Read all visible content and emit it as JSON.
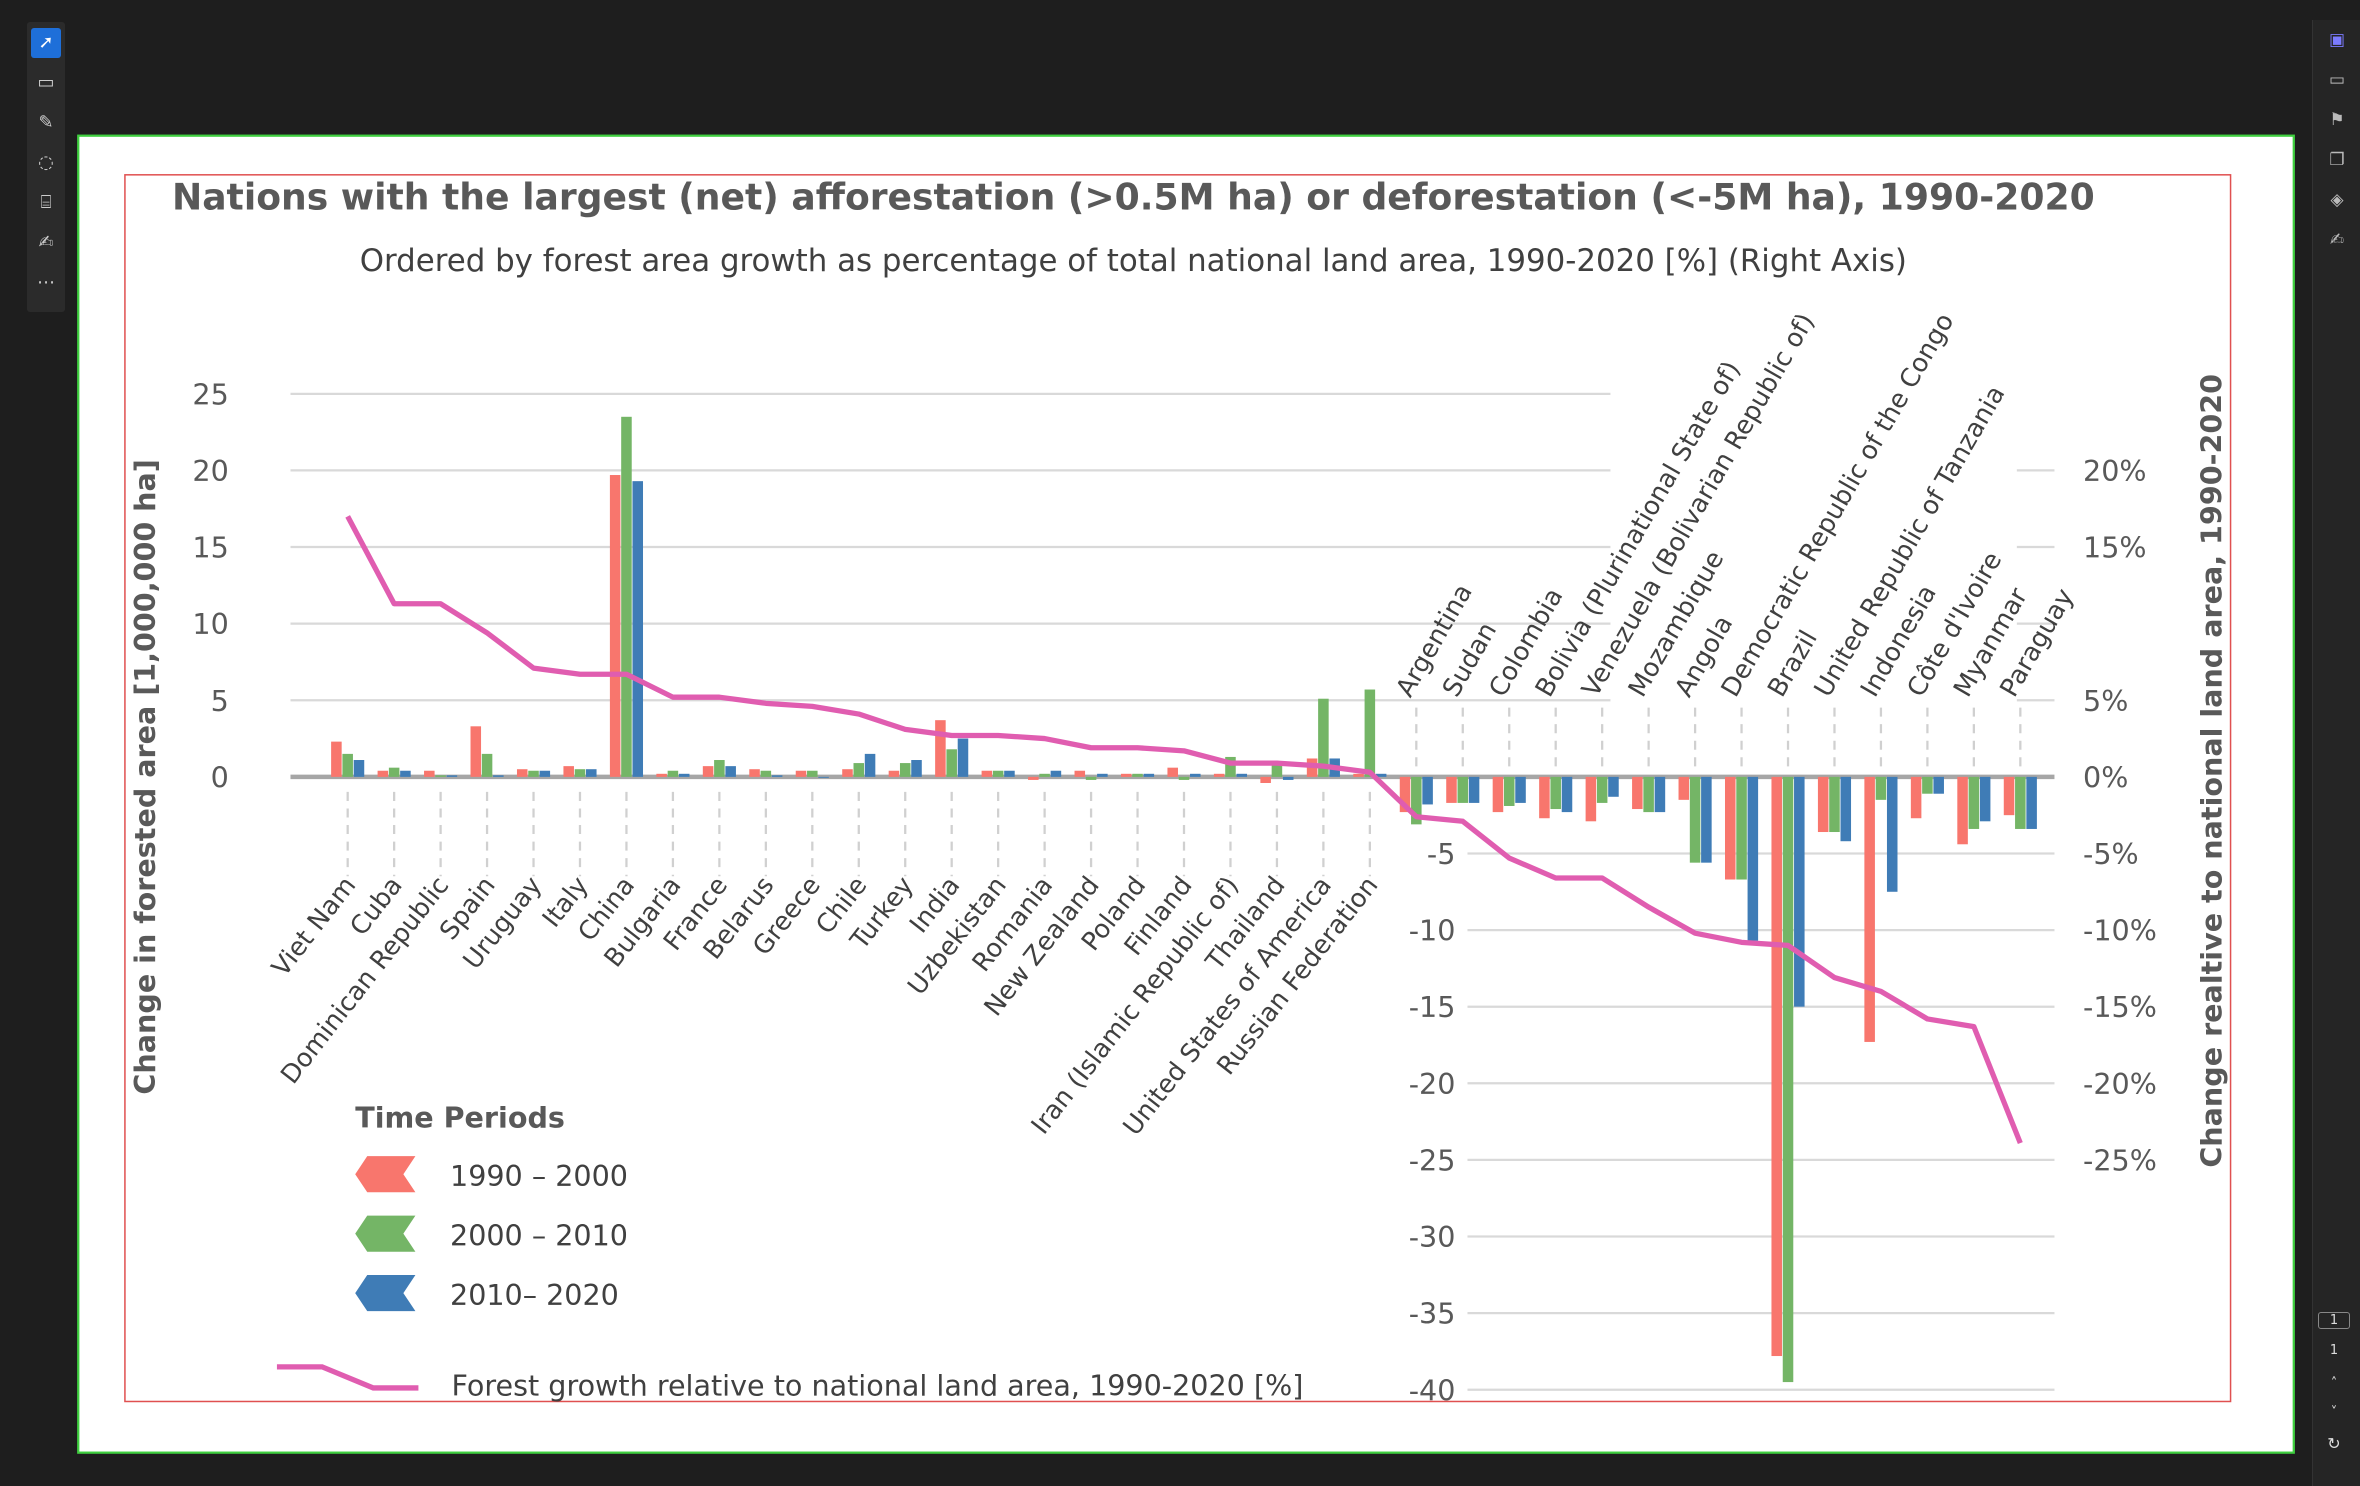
{
  "chart_data": {
    "type": "bar",
    "title": "Nations with the largest (net) afforestation (>0.5M ha) or deforestation (<-5M ha), 1990-2020",
    "subtitle": "Ordered by forest area growth as percentage of total national land area, 1990-2020 [%] (Right Axis)",
    "ylabel": "Change in forested area  [1,000,000 ha]",
    "y2label": "Change realtive to national land area, 1990-2020",
    "ylim": [
      -40,
      25
    ],
    "y2lim": [
      -40,
      25
    ],
    "yticks": [
      25,
      20,
      15,
      10,
      5,
      0,
      -5,
      -10,
      -15,
      -20,
      -25,
      -30,
      -35,
      -40
    ],
    "y2ticks": [
      "20%",
      "15%",
      "5%",
      "0%",
      "-5%",
      "-10%",
      "-15%",
      "-20%",
      "-25%"
    ],
    "y2tick_values": [
      20,
      15,
      5,
      0,
      -5,
      -10,
      -15,
      -20,
      -25
    ],
    "grid": true,
    "legend_title": "Time Periods",
    "legend_position": "bottom-left",
    "categories": [
      "Viet Nam",
      "Cuba",
      "Dominican Republic",
      "Spain",
      "Uruguay",
      "Italy",
      "China",
      "Bulgaria",
      "France",
      "Belarus",
      "Greece",
      "Chile",
      "Turkey",
      "India",
      "Uzbekistan",
      "Romania",
      "New Zealand",
      "Poland",
      "Finland",
      "Iran (Islamic Republic of)",
      "Thailand",
      "United States of America",
      "Russian Federation",
      "Argentina",
      "Sudan",
      "Colombia",
      "Bolivia (Plurinational State of)",
      "Venezuela (Bolivarian Republic of)",
      "Mozambique",
      "Angola",
      "Democratic Republic of the Congo",
      "Brazil",
      "United Republic of Tanzania",
      "Indonesia",
      "Côte d'Ivoire",
      "Myanmar",
      "Paraguay"
    ],
    "series": [
      {
        "name": "1990 – 2000",
        "color": "#f8766d",
        "type": "bar",
        "values": [
          2.3,
          0.4,
          0.4,
          3.3,
          0.5,
          0.7,
          19.7,
          0.2,
          0.7,
          0.5,
          0.4,
          0.5,
          0.4,
          3.7,
          0.4,
          -0.2,
          0.4,
          0.2,
          0.6,
          0.2,
          -0.4,
          1.2,
          0.2,
          -2.3,
          -1.7,
          -2.3,
          -2.7,
          -2.9,
          -2.1,
          -1.5,
          -6.7,
          -37.8,
          -3.6,
          -17.3,
          -2.7,
          -4.4,
          -2.5
        ]
      },
      {
        "name": "2000 – 2010",
        "color": "#74b566",
        "type": "bar",
        "values": [
          1.5,
          0.6,
          0.1,
          1.5,
          0.4,
          0.5,
          23.5,
          0.4,
          1.1,
          0.4,
          0.4,
          0.9,
          0.9,
          1.8,
          0.4,
          0.2,
          -0.2,
          0.2,
          -0.2,
          1.3,
          0.9,
          5.1,
          5.7,
          -3.1,
          -1.7,
          -1.9,
          -2.1,
          -1.7,
          -2.3,
          -5.6,
          -6.7,
          -39.5,
          -3.6,
          -1.5,
          -1.1,
          -3.4,
          -3.4
        ]
      },
      {
        "name": "2010– 2020",
        "color": "#3f7cb6",
        "type": "bar",
        "values": [
          1.1,
          0.4,
          0.1,
          0.1,
          0.4,
          0.5,
          19.3,
          0.2,
          0.7,
          0.1,
          0.0,
          1.5,
          1.1,
          2.5,
          0.4,
          0.4,
          0.2,
          0.2,
          0.2,
          0.2,
          -0.2,
          1.2,
          0.2,
          -1.8,
          -1.7,
          -1.7,
          -2.3,
          -1.3,
          -2.3,
          -5.6,
          -10.7,
          -15.0,
          -4.2,
          -7.5,
          -1.1,
          -2.9,
          -3.4
        ]
      },
      {
        "name": "Forest growth relative to national land area, 1990-2020 [%]",
        "color": "#e05db0",
        "type": "line",
        "axis": "right",
        "values": [
          17.0,
          11.3,
          11.3,
          9.4,
          7.1,
          6.7,
          6.7,
          5.2,
          5.2,
          4.8,
          4.6,
          4.1,
          3.1,
          2.7,
          2.7,
          2.5,
          1.9,
          1.9,
          1.7,
          0.9,
          0.9,
          0.7,
          0.3,
          -2.6,
          -2.9,
          -5.3,
          -6.6,
          -6.6,
          -8.5,
          -10.2,
          -10.8,
          -11.0,
          -13.1,
          -14.0,
          -15.8,
          -16.3,
          -23.9
        ]
      }
    ]
  },
  "colors": {
    "frame_green": "#3fcf3f",
    "frame_red": "#e05050",
    "grid": "#d9d9d9",
    "axis": "#a6a6a6",
    "text": "#595959"
  },
  "toolbar": {
    "icons": [
      "select-icon",
      "comment-icon",
      "pen-icon",
      "lasso-icon",
      "text-select-icon",
      "sign-icon",
      "more-icon"
    ]
  },
  "pager": {
    "current": "1",
    "total": "1"
  }
}
